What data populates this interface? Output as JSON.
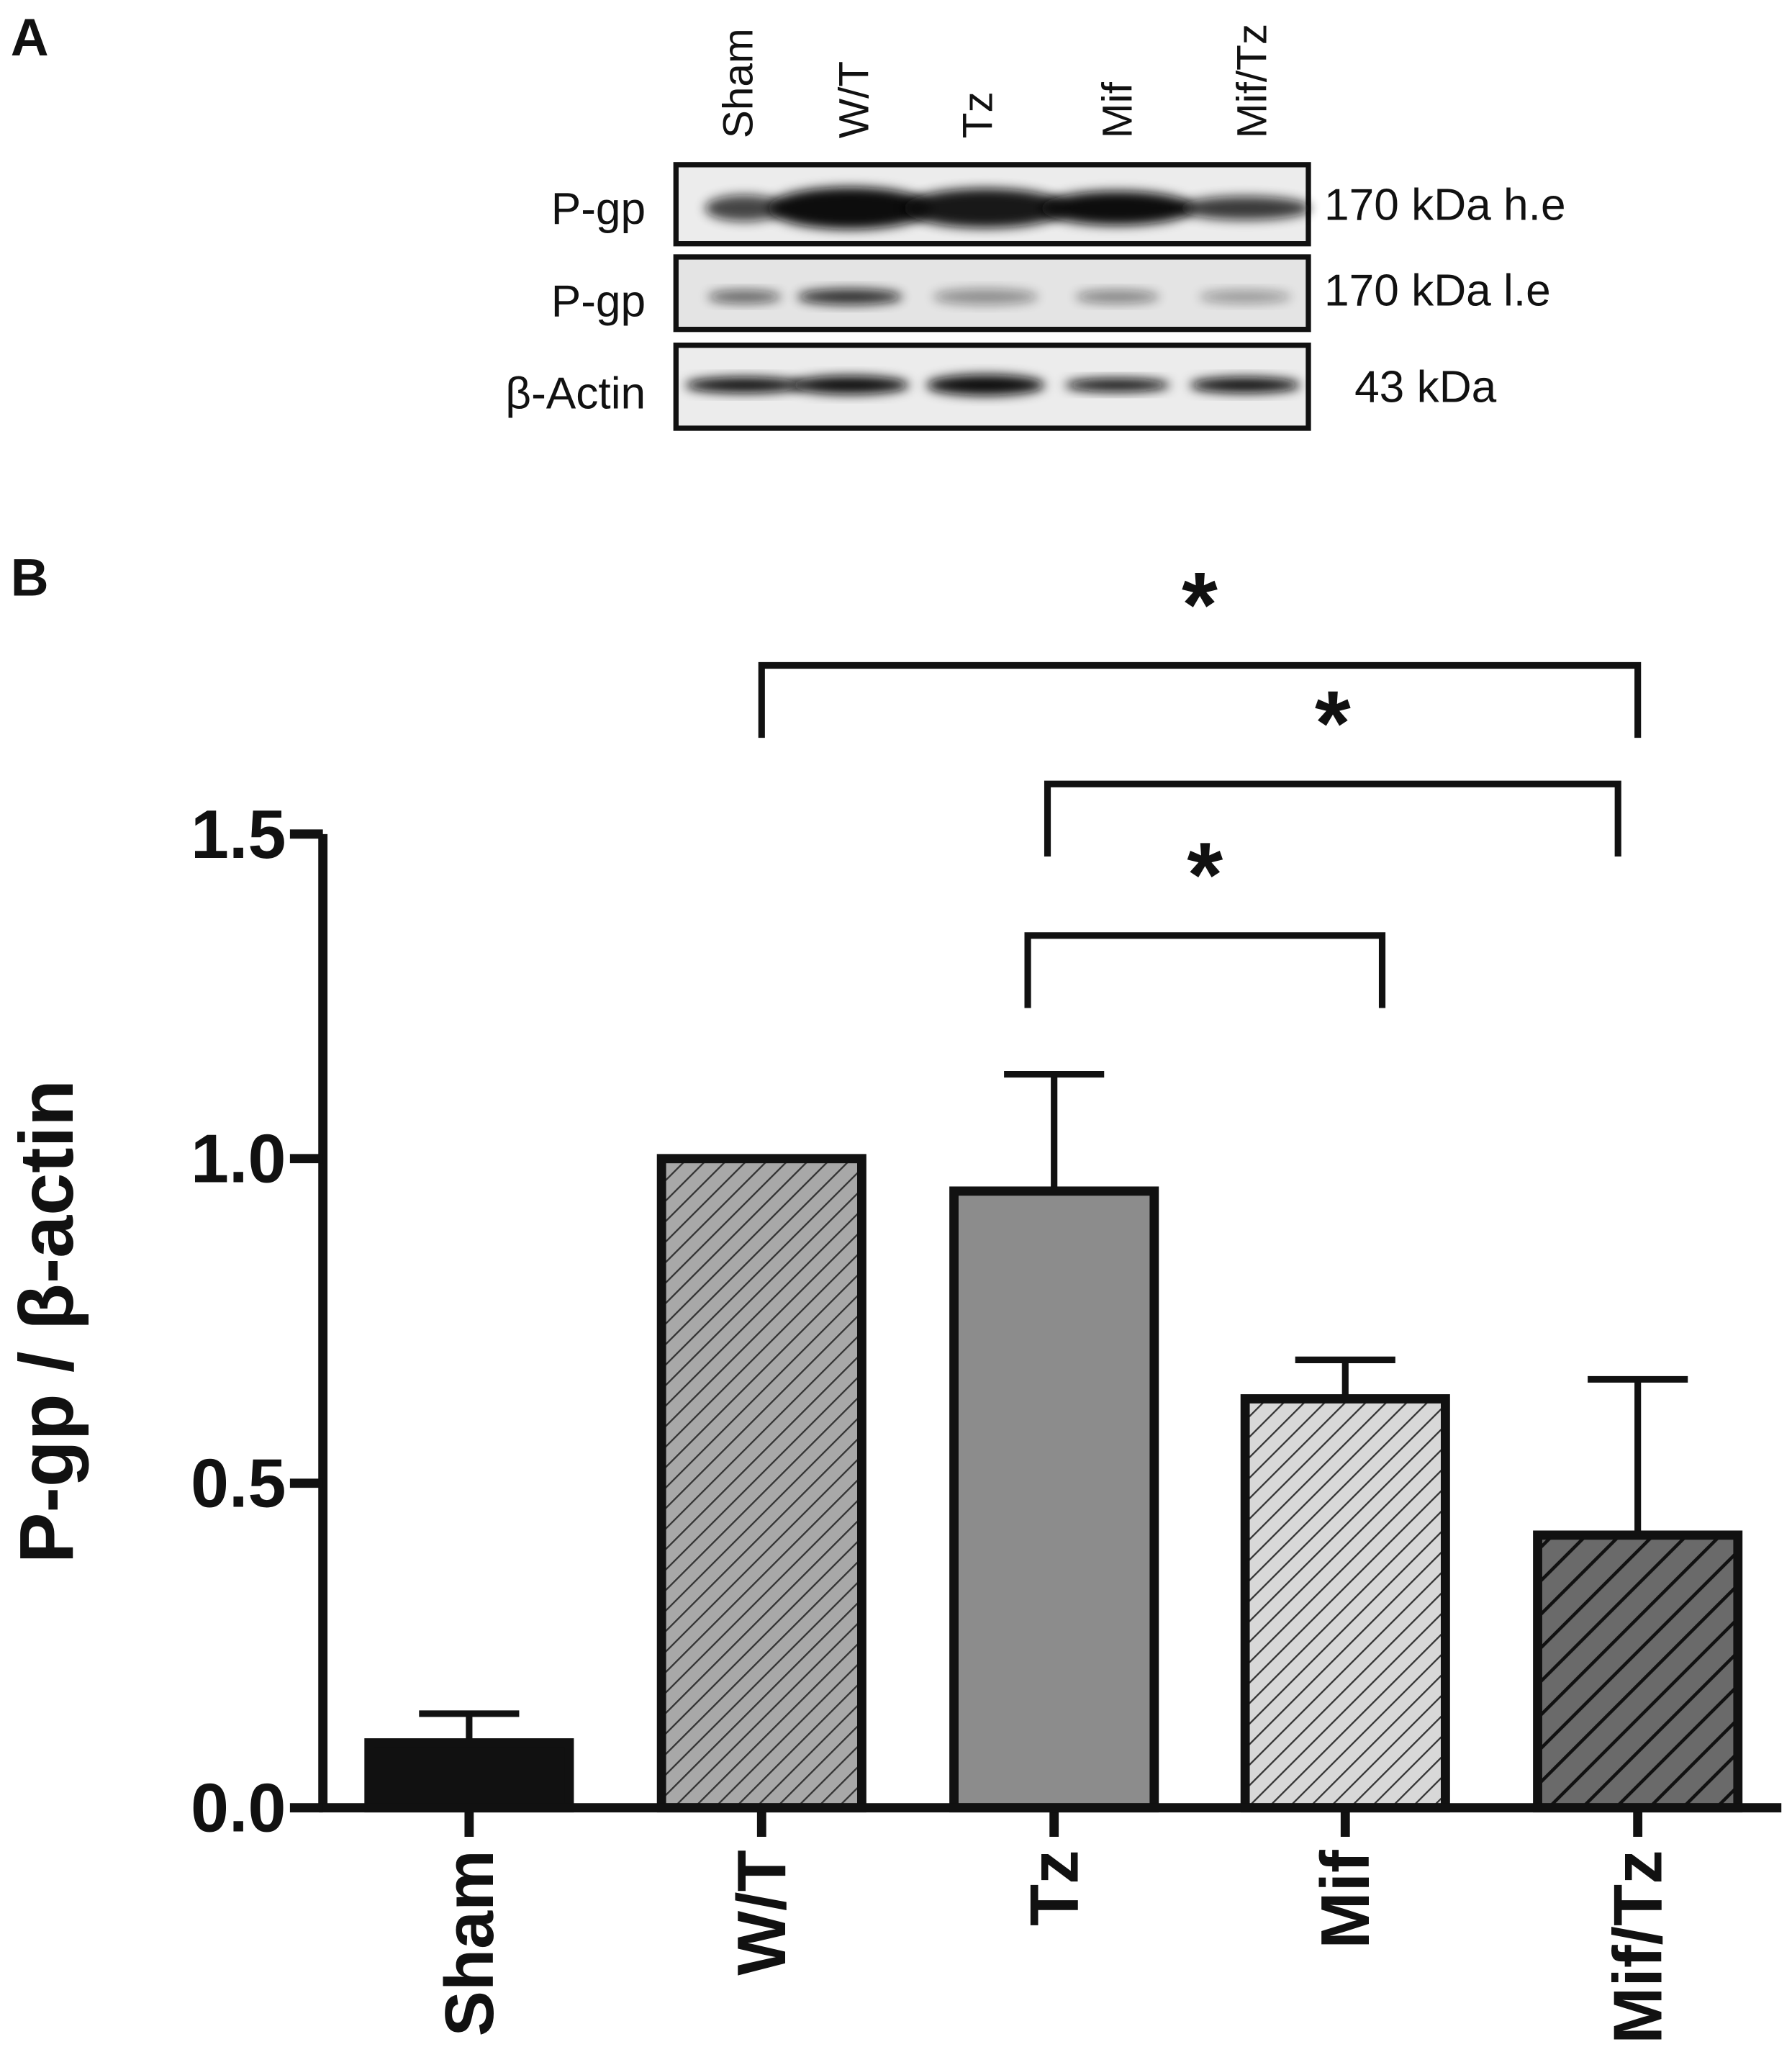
{
  "panel_a": {
    "label": "A",
    "lanes": [
      "Sham",
      "W/T",
      "Tz",
      "Mif",
      "Mif/Tz"
    ],
    "rows": [
      {
        "name": "P-gp",
        "size": "170 kDa h.e"
      },
      {
        "name": "P-gp",
        "size": "170 kDa l.e"
      },
      {
        "name": "β-Actin",
        "size": "43 kDa"
      }
    ]
  },
  "chart_data": {
    "type": "bar",
    "panel_label": "B",
    "y_label": "P-gp / β-actin",
    "categories": [
      "Sham",
      "W/T",
      "Tz",
      "Mif",
      "Mif/Tz"
    ],
    "values": [
      0.1,
      1.0,
      0.95,
      0.63,
      0.42
    ],
    "errors": [
      0.045,
      0,
      0.18,
      0.06,
      0.24
    ],
    "colors": [
      "#111111",
      "#a8a8a8",
      "#8c8c8c",
      "#d8d8d8",
      "#6a6a6a"
    ],
    "hatch": [
      false,
      true,
      false,
      true,
      true
    ],
    "ylim": [
      0,
      1.5
    ],
    "yticks": [
      {
        "value": 0,
        "label": "0.0"
      },
      {
        "value": 0.5,
        "label": "0.5"
      },
      {
        "value": 1,
        "label": "1.0"
      },
      {
        "value": 1.5,
        "label": "1.5"
      }
    ],
    "comparisons": [
      {
        "groups": [
          "W/T",
          "Mif/Tz"
        ],
        "label": "*"
      },
      {
        "groups": [
          "Tz",
          "Mif/Tz"
        ],
        "label": "*"
      },
      {
        "groups": [
          "Tz",
          "Mif"
        ],
        "label": "*"
      }
    ]
  }
}
